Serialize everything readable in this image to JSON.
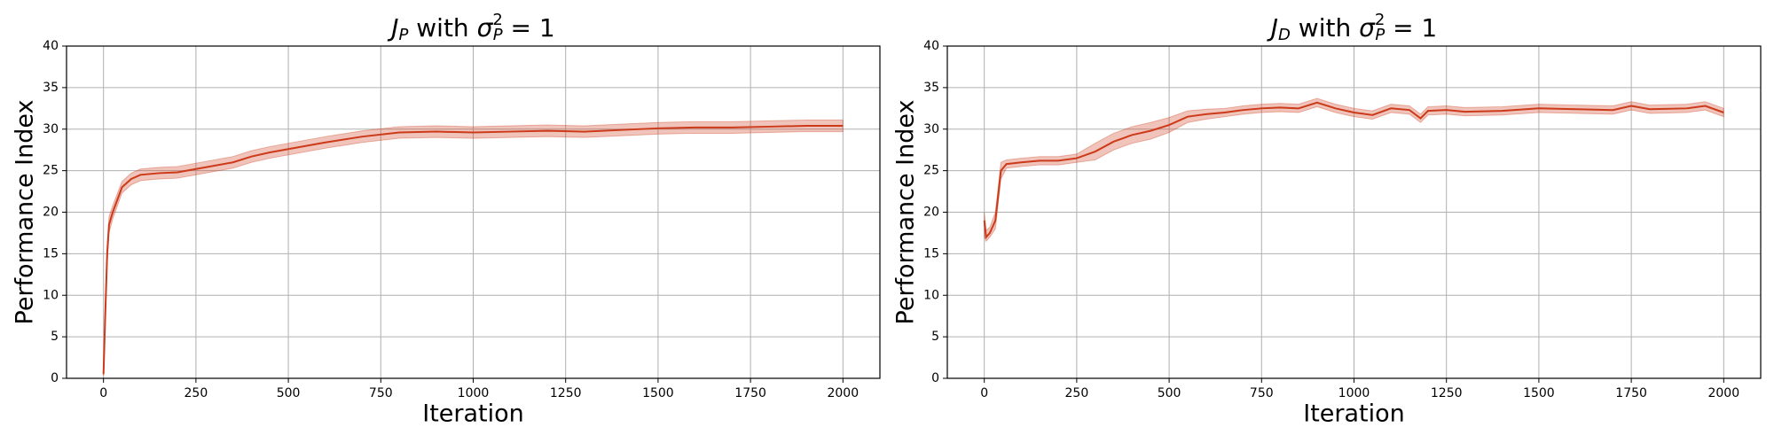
{
  "chart_data": [
    {
      "type": "line",
      "title": [
        {
          "text": "J",
          "italic": true
        },
        {
          "text": "P",
          "sub": true,
          "italic": true
        },
        {
          "text": " with "
        },
        {
          "text": "σ",
          "italic": true
        },
        {
          "text": "2",
          "sup": true
        },
        {
          "text": "P",
          "sub": true,
          "italic": true,
          "stack": true
        },
        {
          "text": " =  1"
        }
      ],
      "xlabel": "Iteration",
      "ylabel": "Performance Index",
      "xlim": [
        -100,
        2100
      ],
      "xticks": [
        0,
        250,
        500,
        750,
        1000,
        1250,
        1500,
        1750,
        2000
      ],
      "ylim": [
        0,
        40
      ],
      "yticks": [
        0,
        5,
        10,
        15,
        20,
        25,
        30,
        35,
        40
      ],
      "grid": true,
      "x": [
        0,
        5,
        10,
        15,
        25,
        50,
        75,
        100,
        150,
        200,
        250,
        300,
        350,
        400,
        450,
        500,
        600,
        700,
        800,
        900,
        1000,
        1100,
        1200,
        1300,
        1400,
        1500,
        1600,
        1700,
        1800,
        1900,
        2000
      ],
      "series": [
        {
          "color": "#cc3a1a",
          "values": [
            0.5,
            8,
            15,
            18.5,
            20,
            23,
            24,
            24.5,
            24.7,
            24.8,
            25.2,
            25.6,
            26,
            26.7,
            27.2,
            27.6,
            28.4,
            29.1,
            29.6,
            29.7,
            29.6,
            29.7,
            29.8,
            29.7,
            29.9,
            30.1,
            30.2,
            30.2,
            30.3,
            30.4,
            30.4
          ],
          "lower": [
            0.3,
            7,
            14,
            17.5,
            19.2,
            22.3,
            23.3,
            23.8,
            24,
            24.1,
            24.5,
            24.9,
            25.3,
            26,
            26.5,
            26.9,
            27.7,
            28.4,
            28.9,
            29,
            28.9,
            29,
            29.1,
            29,
            29.2,
            29.4,
            29.5,
            29.5,
            29.6,
            29.7,
            29.7
          ],
          "upper": [
            0.7,
            9,
            16,
            19.5,
            20.8,
            23.7,
            24.7,
            25.2,
            25.4,
            25.5,
            25.9,
            26.3,
            26.7,
            27.4,
            27.9,
            28.3,
            29.1,
            29.8,
            30.3,
            30.4,
            30.3,
            30.4,
            30.5,
            30.4,
            30.6,
            30.8,
            30.9,
            30.9,
            31,
            31.1,
            31.1
          ]
        }
      ]
    },
    {
      "type": "line",
      "title": [
        {
          "text": "J",
          "italic": true
        },
        {
          "text": "D",
          "sub": true,
          "italic": true
        },
        {
          "text": " with "
        },
        {
          "text": "σ",
          "italic": true
        },
        {
          "text": "2",
          "sup": true
        },
        {
          "text": "P",
          "sub": true,
          "italic": true,
          "stack": true
        },
        {
          "text": " =  1"
        }
      ],
      "xlabel": "Iteration",
      "ylabel": "Performance Index",
      "xlim": [
        -100,
        2100
      ],
      "xticks": [
        0,
        250,
        500,
        750,
        1000,
        1250,
        1500,
        1750,
        2000
      ],
      "ylim": [
        0,
        40
      ],
      "yticks": [
        0,
        5,
        10,
        15,
        20,
        25,
        30,
        35,
        40
      ],
      "grid": true,
      "x": [
        0,
        5,
        15,
        30,
        45,
        60,
        100,
        150,
        200,
        250,
        300,
        350,
        400,
        450,
        500,
        550,
        600,
        650,
        700,
        750,
        800,
        850,
        900,
        950,
        1000,
        1050,
        1100,
        1150,
        1180,
        1200,
        1250,
        1300,
        1400,
        1500,
        1600,
        1700,
        1750,
        1800,
        1900,
        1950,
        2000
      ],
      "series": [
        {
          "color": "#cc3a1a",
          "values": [
            19,
            17,
            17.5,
            19,
            25,
            25.8,
            26,
            26.2,
            26.2,
            26.5,
            27.3,
            28.5,
            29.3,
            29.8,
            30.5,
            31.5,
            31.8,
            32,
            32.3,
            32.5,
            32.6,
            32.5,
            33.2,
            32.5,
            32,
            31.7,
            32.5,
            32.3,
            31.3,
            32.2,
            32.3,
            32.1,
            32.2,
            32.5,
            32.4,
            32.3,
            32.8,
            32.4,
            32.5,
            32.8,
            32
          ],
          "lower": [
            17,
            16.5,
            17,
            18,
            24,
            25.3,
            25.5,
            25.7,
            25.7,
            26,
            26.3,
            27.5,
            28.3,
            28.8,
            29.6,
            30.8,
            31.2,
            31.5,
            31.8,
            32,
            32.1,
            32,
            32.7,
            32,
            31.5,
            31.2,
            32,
            31.8,
            30.8,
            31.7,
            31.8,
            31.6,
            31.7,
            32,
            31.9,
            31.8,
            32.3,
            31.9,
            32,
            32.3,
            31.5
          ],
          "upper": [
            20,
            17.8,
            18.2,
            20,
            26,
            26.3,
            26.5,
            26.7,
            26.7,
            27,
            28.3,
            29.5,
            30.3,
            30.8,
            31.4,
            32.2,
            32.4,
            32.5,
            32.8,
            33,
            33.1,
            33,
            33.7,
            33,
            32.5,
            32.2,
            33,
            32.8,
            31.8,
            32.7,
            32.8,
            32.6,
            32.7,
            33,
            32.9,
            32.8,
            33.3,
            32.9,
            33,
            33.3,
            32.5
          ]
        }
      ]
    }
  ]
}
